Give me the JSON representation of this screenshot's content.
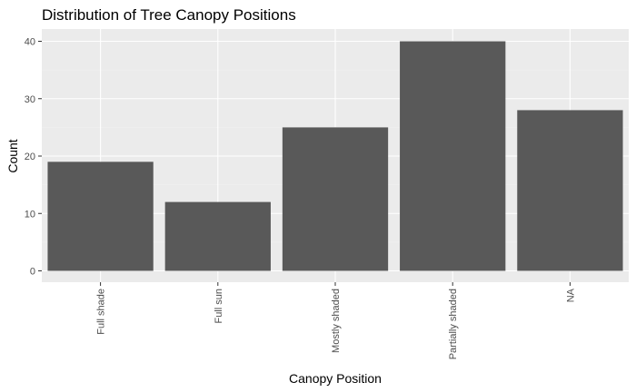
{
  "chart_data": {
    "type": "bar",
    "title": "Distribution of Tree Canopy Positions",
    "xlabel": "Canopy Position",
    "ylabel": "Count",
    "categories": [
      "Full shade",
      "Full sun",
      "Mostly shaded",
      "Partially shaded",
      "NA"
    ],
    "values": [
      19,
      12,
      25,
      40,
      28
    ],
    "ylim": [
      0,
      42
    ],
    "yticks": [
      0,
      10,
      20,
      30,
      40
    ],
    "grid": true,
    "legend": "none",
    "colors": {
      "bar": "#595959",
      "panel": "#ebebeb",
      "grid_major": "#ffffff",
      "grid_minor": "#f2f2f2",
      "tick_text": "#4d4d4d"
    }
  }
}
